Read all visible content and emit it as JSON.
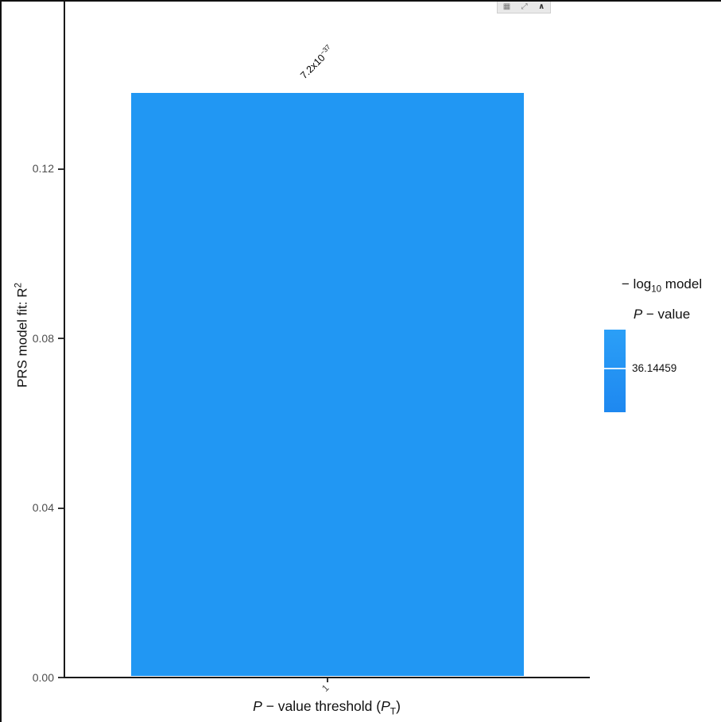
{
  "toolbar": {
    "grid_glyph": "▦",
    "expand_glyph": "⤢",
    "chevron_glyph": "∧"
  },
  "chart_data": {
    "type": "bar",
    "categories": [
      "1"
    ],
    "values": [
      0.1375
    ],
    "bar_color": "#2197F3",
    "ylim": [
      0,
      0.145
    ],
    "ytick_labels": [
      "0.00",
      "0.04",
      "0.08",
      "0.12"
    ],
    "ytick_values": [
      0.0,
      0.04,
      0.08,
      0.12
    ],
    "grid": "off",
    "legend_position": "right",
    "annotation": {
      "base": "7.2x10",
      "sup": "−37"
    },
    "ylabel_parts": {
      "main": "PRS model fit:  R",
      "sup": "2"
    },
    "xlabel_parts": {
      "p1": "P",
      "mid": " − value threshold (",
      "p2": "P",
      "sub": "T",
      "end": ")"
    },
    "legend": {
      "title_l1a": "− log",
      "title_l1sub": "10",
      "title_l1b": " model",
      "title_l2a": "P",
      "title_l2b": " − value",
      "value": "36.14459",
      "gradient_top": "#2B9FF7",
      "gradient_bottom": "#1E88F0"
    }
  }
}
